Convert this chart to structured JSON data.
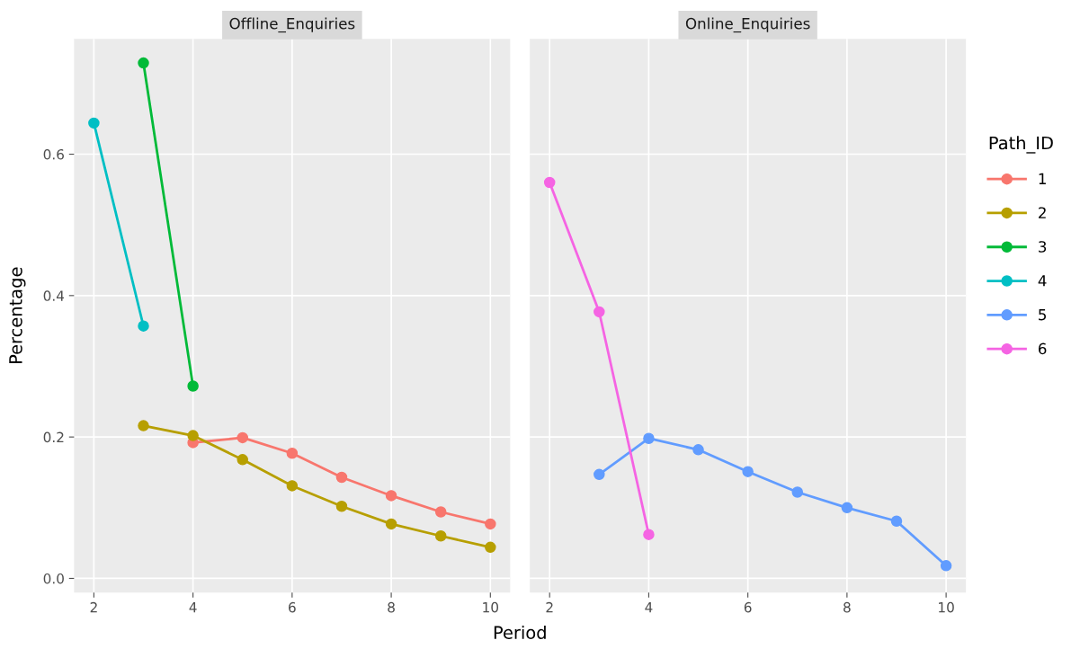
{
  "chart_data": [
    {
      "type": "line",
      "title": "Offline_Enquiries",
      "xlabel": "Period",
      "ylabel": "Percentage",
      "xlim": [
        1.6,
        10.4
      ],
      "xticks": [
        2,
        4,
        6,
        8,
        10
      ],
      "ylim": [
        -0.02,
        0.763
      ],
      "yticks": [
        {
          "value": 0,
          "label": "0.0"
        },
        0.2,
        0.4,
        0.6
      ],
      "grid": true,
      "marker": "circle",
      "line_style": "solid",
      "legend": "right",
      "series": [
        {
          "name": "1",
          "color": "#F8766D",
          "x": [
            4,
            5,
            6,
            7,
            8,
            9,
            10
          ],
          "values": [
            0.192,
            0.199,
            0.177,
            0.143,
            0.117,
            0.094,
            0.077
          ]
        },
        {
          "name": "2",
          "color": "#B79F00",
          "x": [
            3,
            4,
            5,
            6,
            7,
            8,
            9,
            10
          ],
          "values": [
            0.216,
            0.202,
            0.168,
            0.131,
            0.102,
            0.077,
            0.06,
            0.044
          ]
        },
        {
          "name": "3",
          "color": "#00BA38",
          "x": [
            3,
            4
          ],
          "values": [
            0.729,
            0.272
          ]
        },
        {
          "name": "4",
          "color": "#00BFC4",
          "x": [
            2,
            3
          ],
          "values": [
            0.644,
            0.357
          ]
        }
      ]
    },
    {
      "type": "line",
      "title": "Online_Enquiries",
      "xlim": [
        1.6,
        10.4
      ],
      "xticks": [
        2,
        4,
        6,
        8,
        10
      ],
      "ylim": [
        -0.02,
        0.763
      ],
      "yticks": [
        0,
        0.2,
        0.4,
        0.6
      ],
      "tick_labels": "x",
      "grid": true,
      "marker": "circle",
      "line_style": "solid",
      "legend": "right",
      "legend_title": "Path_ID",
      "series": [
        {
          "name": "5",
          "color": "#619CFF",
          "x": [
            3,
            4,
            5,
            6,
            7,
            8,
            9,
            10
          ],
          "values": [
            0.147,
            0.198,
            0.182,
            0.151,
            0.122,
            0.1,
            0.081,
            0.018
          ]
        },
        {
          "name": "6",
          "color": "#F564E3",
          "x": [
            2,
            3,
            4
          ],
          "values": [
            0.56,
            0.377,
            0.062
          ]
        }
      ]
    }
  ]
}
